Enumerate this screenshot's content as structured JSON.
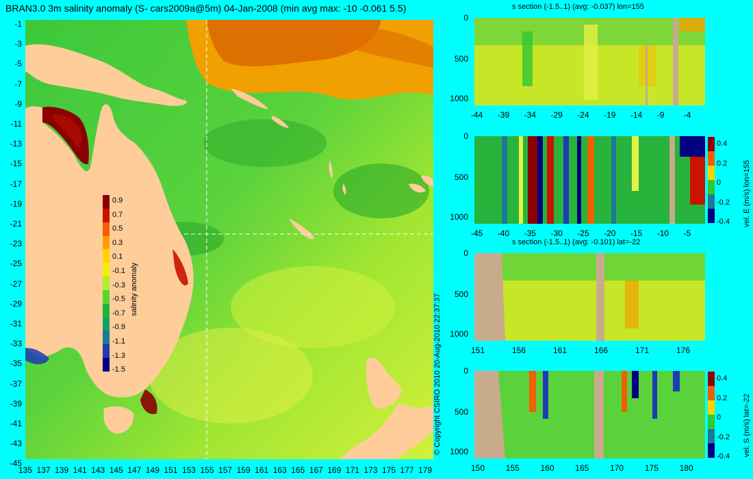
{
  "map": {
    "title": "BRAN3.0 3m salinity anomaly (S- cars2009a@5m) 04-Jan-2008 (min avg max: -10 -0.061 5.5)",
    "y_ticks": [
      "-1",
      "-3",
      "-5",
      "-7",
      "-9",
      "-11",
      "-13",
      "-15",
      "-17",
      "-19",
      "-21",
      "-23",
      "-25",
      "-27",
      "-29",
      "-31",
      "-33",
      "-35",
      "-37",
      "-39",
      "-41",
      "-43",
      "-45"
    ],
    "x_ticks": [
      "135",
      "137",
      "139",
      "141",
      "143",
      "145",
      "147",
      "149",
      "151",
      "153",
      "155",
      "157",
      "159",
      "161",
      "163",
      "165",
      "167",
      "169",
      "171",
      "173",
      "175",
      "177",
      "179"
    ],
    "colorbar": {
      "label": "salinity anomaly",
      "ticks": [
        "0.9",
        "0.7",
        "0.5",
        "0.3",
        "0.1",
        "-0.1",
        "-0.3",
        "-0.5",
        "-0.7",
        "-0.9",
        "-1.1",
        "-1.3",
        "-1.5"
      ],
      "colors": [
        "#8b0000",
        "#c81400",
        "#f06000",
        "#ffa000",
        "#ffd200",
        "#f0f000",
        "#b4ee28",
        "#5ad52d",
        "#1eb43c",
        "#14a064",
        "#1e7896",
        "#1e3cb4",
        "#000080"
      ]
    },
    "copyright": "© Copyright CSIRO 2010   20-Aug-2010 22:37:37"
  },
  "panels": [
    {
      "title": "s section (-1.5..1) (avg: -0.037) lon=155",
      "x_ticks": [
        "-44",
        "-39",
        "-34",
        "-29",
        "-24",
        "-19",
        "-14",
        "-9",
        "-4"
      ],
      "y_ticks": [
        "0",
        "500",
        "1000"
      ],
      "colorbar": null
    },
    {
      "title": "",
      "x_ticks": [
        "-45",
        "-40",
        "-35",
        "-30",
        "-25",
        "-20",
        "-15",
        "-10",
        "-5"
      ],
      "y_ticks": [
        "0",
        "500",
        "1000"
      ],
      "colorbar": {
        "label": "vel. E (m/s) lon=155",
        "ticks": [
          "0.4",
          "0.2",
          "0",
          "-0.2",
          "-0.4"
        ]
      }
    },
    {
      "title": "s section (-1.5..1) (avg: -0.101) lat=-22",
      "x_ticks": [
        "151",
        "156",
        "161",
        "166",
        "171",
        "176"
      ],
      "y_ticks": [
        "0",
        "500",
        "1000"
      ],
      "colorbar": null
    },
    {
      "title": "",
      "x_ticks": [
        "150",
        "155",
        "160",
        "165",
        "170",
        "175",
        "180"
      ],
      "y_ticks": [
        "0",
        "500",
        "1000"
      ],
      "colorbar": {
        "label": "vel. S (m/s) lat=-22",
        "ticks": [
          "0.4",
          "0.2",
          "0",
          "-0.2",
          "-0.4"
        ]
      }
    }
  ],
  "colors": {
    "background": "#00ffff",
    "land": "#fecd9a",
    "section_land": "#c8aa8c",
    "ocean_green": "#32c832",
    "ocean_yellow": "#d2f03c"
  }
}
